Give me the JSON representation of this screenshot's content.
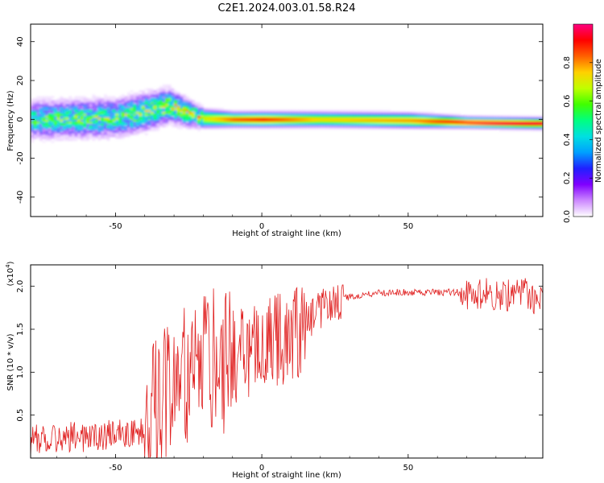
{
  "chart_data": [
    {
      "type": "heatmap",
      "title": "C2E1.2024.003.01.58.R24",
      "xlabel": "Height of straight line (km)",
      "ylabel": "Frequency (Hz)",
      "xlim": [
        -79,
        96
      ],
      "ylim": [
        -50,
        49
      ],
      "xticks": [
        -50,
        0,
        50
      ],
      "yticks": [
        -40,
        -20,
        0,
        20,
        40
      ],
      "colorbar": {
        "label": "Normalized spectral amplitude",
        "range": [
          0,
          1
        ],
        "ticks": [
          "0.0",
          "0.2",
          "0.4",
          "0.6",
          "0.8"
        ],
        "colormap": [
          "#ffffff",
          "#cc88ff",
          "#8000ff",
          "#2020ff",
          "#00a0ff",
          "#00e0e0",
          "#00ff80",
          "#40ff00",
          "#c0ff00",
          "#ffd000",
          "#ff6000",
          "#ff0000",
          "#ff0080"
        ]
      },
      "ridge": [
        {
          "x": -79,
          "center": 0.0,
          "spread": 5.0,
          "peak": 0.45
        },
        {
          "x": -65,
          "center": 0.3,
          "spread": 5.0,
          "peak": 0.5
        },
        {
          "x": -50,
          "center": 1.0,
          "spread": 5.0,
          "peak": 0.5
        },
        {
          "x": -40,
          "center": 4.0,
          "spread": 5.0,
          "peak": 0.55
        },
        {
          "x": -32,
          "center": 7.0,
          "spread": 4.5,
          "peak": 0.6
        },
        {
          "x": -25,
          "center": 3.0,
          "spread": 3.5,
          "peak": 0.6
        },
        {
          "x": -20,
          "center": 0.5,
          "spread": 2.5,
          "peak": 0.7
        },
        {
          "x": -10,
          "center": 0.0,
          "spread": 2.0,
          "peak": 0.85
        },
        {
          "x": 0,
          "center": 0.0,
          "spread": 2.0,
          "peak": 0.9
        },
        {
          "x": 20,
          "center": 0.0,
          "spread": 2.0,
          "peak": 0.75
        },
        {
          "x": 50,
          "center": -0.5,
          "spread": 2.0,
          "peak": 0.8
        },
        {
          "x": 70,
          "center": -1.5,
          "spread": 1.5,
          "peak": 0.95
        },
        {
          "x": 96,
          "center": -2.0,
          "spread": 1.5,
          "peak": 1.0
        }
      ]
    },
    {
      "type": "line",
      "xlabel": "Height of straight line (km)",
      "ylabel": "SNR (10 * v/v)",
      "y_multiplier": "(x10",
      "y_multiplier_exp": "4",
      "xlim": [
        -79,
        96
      ],
      "ylim": [
        0,
        2.25
      ],
      "xticks": [
        -50,
        0,
        50
      ],
      "yticks": [
        0.5,
        1.0,
        1.5,
        2.0
      ],
      "line_color": "#e02020",
      "series": [
        {
          "x": [
            -79,
            -70,
            -60,
            -50,
            -42,
            -38,
            -35,
            -32,
            -28,
            -24,
            -20,
            -16,
            -12,
            -8,
            -4,
            0,
            4,
            8,
            12,
            16,
            20,
            24,
            28,
            32,
            36,
            40,
            45,
            50,
            55,
            60,
            65,
            68,
            70,
            75,
            80,
            85,
            90,
            96
          ],
          "y": [
            0.2,
            0.25,
            0.25,
            0.28,
            0.3,
            0.4,
            0.55,
            0.75,
            0.85,
            1.0,
            1.05,
            1.1,
            1.15,
            1.2,
            1.25,
            1.3,
            1.35,
            1.4,
            1.45,
            1.6,
            1.75,
            1.82,
            1.86,
            1.89,
            1.91,
            1.92,
            1.93,
            1.93,
            1.93,
            1.93,
            1.93,
            1.93,
            1.9,
            1.9,
            1.9,
            1.9,
            1.9,
            1.85
          ]
        }
      ]
    }
  ]
}
